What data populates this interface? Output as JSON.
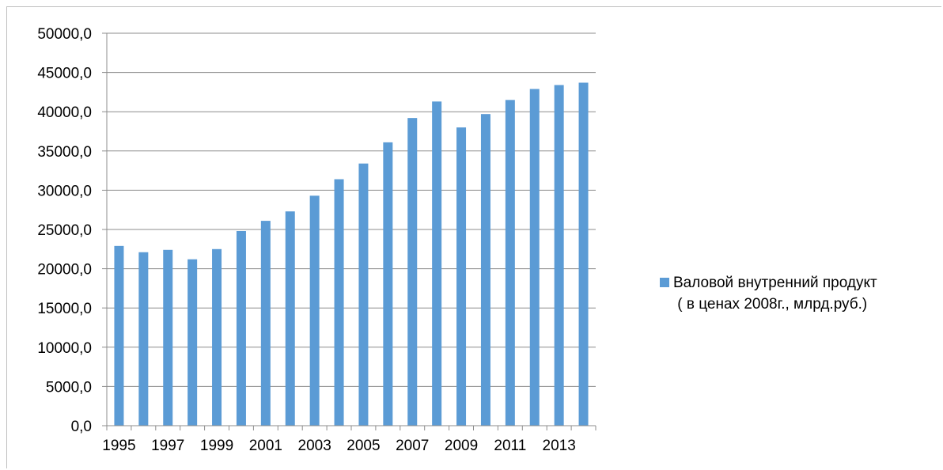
{
  "chart_data": {
    "type": "bar",
    "title": "",
    "xlabel": "",
    "ylabel": "",
    "categories": [
      "1995",
      "1996",
      "1997",
      "1998",
      "1999",
      "2000",
      "2001",
      "2002",
      "2003",
      "2004",
      "2005",
      "2006",
      "2007",
      "2008",
      "2009",
      "2010",
      "2011",
      "2012",
      "2013",
      "2014"
    ],
    "x_tick_labels": [
      "1995",
      "1997",
      "1999",
      "2001",
      "2003",
      "2005",
      "2007",
      "2009",
      "2011",
      "2013"
    ],
    "y_tick_labels": [
      "0,0",
      "5000,0",
      "10000,0",
      "15000,0",
      "20000,0",
      "25000,0",
      "30000,0",
      "35000,0",
      "40000,0",
      "45000,0",
      "50000,0"
    ],
    "ylim": [
      0,
      50000
    ],
    "grid": true,
    "legend_position": "right",
    "series": [
      {
        "name": "Валовой внутренний продукт ( в ценах 2008г., млрд.руб.)",
        "color": "#5b9bd5",
        "values": [
          22900,
          22100,
          22400,
          21200,
          22500,
          24800,
          26100,
          27300,
          29300,
          31400,
          33400,
          36100,
          39200,
          41300,
          38000,
          39700,
          41500,
          42900,
          43400,
          43700
        ]
      }
    ]
  },
  "legend": {
    "line1": "Валовой внутренний продукт",
    "line2": " ( в ценах 2008г., млрд.руб.)"
  }
}
